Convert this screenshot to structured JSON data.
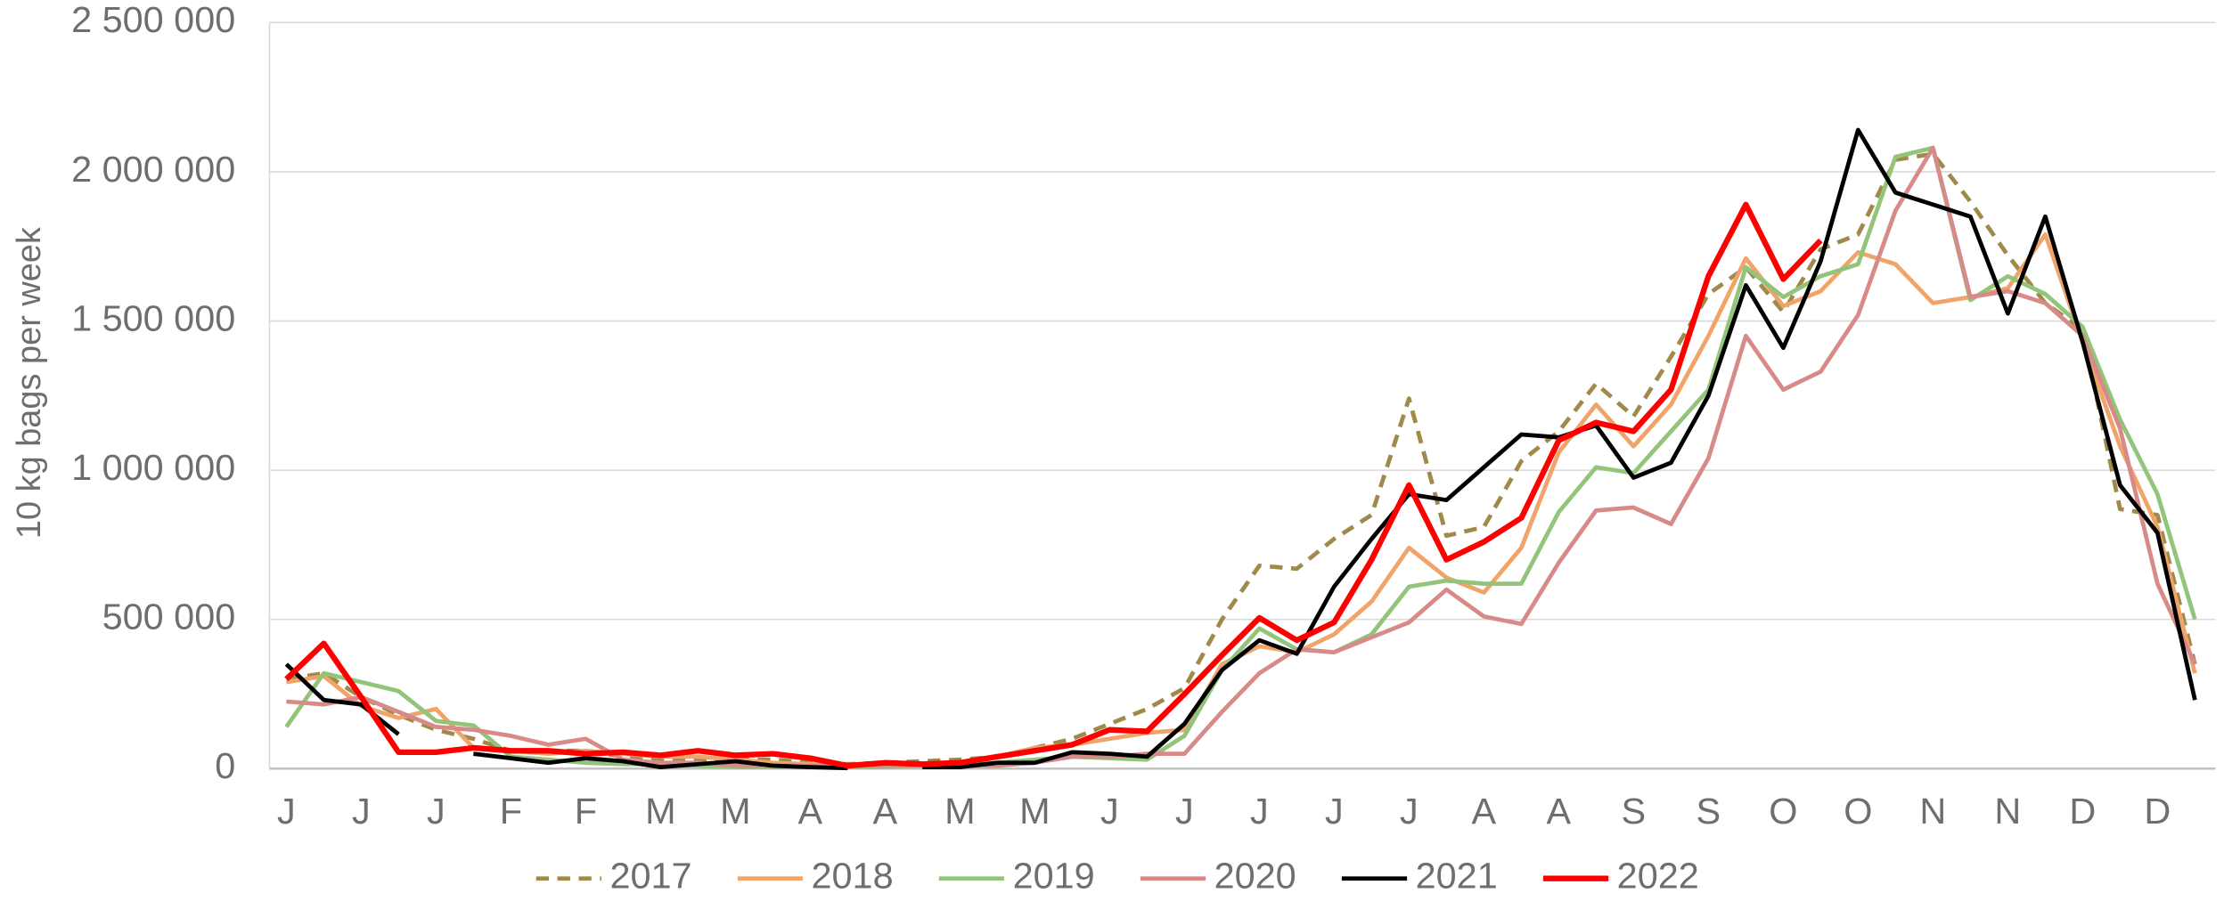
{
  "chart_data": {
    "type": "line",
    "y_label": "10 kg bags per week",
    "categories": [
      "J",
      null,
      "J",
      null,
      "J",
      null,
      "F",
      null,
      "F",
      null,
      "M",
      null,
      "M",
      null,
      "A",
      null,
      "A",
      null,
      "M",
      null,
      "M",
      null,
      "J",
      null,
      "J",
      null,
      "J",
      null,
      "J",
      null,
      "J",
      null,
      "A",
      null,
      "A",
      null,
      "S",
      null,
      "S",
      null,
      "O",
      null,
      "O",
      null,
      "N",
      null,
      "N",
      null,
      "D",
      null,
      "D",
      null
    ],
    "ylim": [
      0,
      2500000
    ],
    "yticks": [
      0,
      {
        "value": 500000,
        "label": "500 000"
      },
      {
        "value": 1000000,
        "label": "1 000 000"
      },
      {
        "value": 1500000,
        "label": "1 500 000"
      },
      {
        "value": 2000000,
        "label": "2 000 000"
      },
      {
        "value": 2500000,
        "label": "2 500 000"
      }
    ],
    "grid": true,
    "legend": "bottom",
    "series": [
      {
        "name": "2017",
        "color": "#a08a4a",
        "dashed": true,
        "values": [
          300000,
          320000,
          240000,
          180000,
          130000,
          100000,
          60000,
          60000,
          60000,
          40000,
          30000,
          30000,
          30000,
          30000,
          20000,
          15000,
          20000,
          25000,
          30000,
          40000,
          70000,
          100000,
          150000,
          200000,
          270000,
          500000,
          680000,
          670000,
          770000,
          850000,
          1240000,
          780000,
          810000,
          1030000,
          1130000,
          1290000,
          1180000,
          1380000,
          1590000,
          1680000,
          1530000,
          1740000,
          1790000,
          2040000,
          2060000,
          1900000,
          1720000,
          1560000,
          1470000,
          870000,
          850000,
          350000
        ]
      },
      {
        "name": "2018",
        "color": "#f0a46a",
        "values": [
          290000,
          310000,
          210000,
          170000,
          200000,
          70000,
          60000,
          50000,
          60000,
          50000,
          40000,
          40000,
          30000,
          20000,
          15000,
          10000,
          10000,
          10000,
          20000,
          40000,
          70000,
          80000,
          100000,
          120000,
          130000,
          350000,
          410000,
          390000,
          450000,
          560000,
          740000,
          640000,
          590000,
          740000,
          1060000,
          1220000,
          1080000,
          1220000,
          1450000,
          1710000,
          1550000,
          1600000,
          1730000,
          1690000,
          1560000,
          1580000,
          1610000,
          1790000,
          1430000,
          1080000,
          810000,
          320000
        ]
      },
      {
        "name": "2019",
        "color": "#92c47a",
        "values": [
          140000,
          320000,
          290000,
          260000,
          160000,
          145000,
          40000,
          30000,
          20000,
          15000,
          15000,
          10000,
          5000,
          5000,
          5000,
          5000,
          5000,
          10000,
          15000,
          20000,
          30000,
          40000,
          35000,
          30000,
          110000,
          330000,
          470000,
          400000,
          390000,
          450000,
          610000,
          630000,
          620000,
          620000,
          860000,
          1010000,
          990000,
          1130000,
          1270000,
          1680000,
          1580000,
          1650000,
          1690000,
          2050000,
          2080000,
          1570000,
          1650000,
          1590000,
          1480000,
          1170000,
          920000,
          500000
        ]
      },
      {
        "name": "2020",
        "color": "#d88a88",
        "values": [
          225000,
          215000,
          240000,
          190000,
          140000,
          130000,
          110000,
          80000,
          100000,
          30000,
          20000,
          20000,
          10000,
          10000,
          10000,
          10000,
          10000,
          10000,
          10000,
          10000,
          20000,
          40000,
          40000,
          50000,
          50000,
          190000,
          320000,
          400000,
          390000,
          440000,
          490000,
          600000,
          510000,
          485000,
          690000,
          865000,
          875000,
          820000,
          1040000,
          1450000,
          1270000,
          1330000,
          1520000,
          1870000,
          2080000,
          1580000,
          1600000,
          1560000,
          1450000,
          1140000,
          620000,
          350000
        ]
      },
      {
        "name": "2021",
        "color": "#000000",
        "values": [
          350000,
          230000,
          215000,
          115000,
          null,
          50000,
          35000,
          20000,
          35000,
          25000,
          5000,
          15000,
          25000,
          10000,
          5000,
          2000,
          null,
          5000,
          5000,
          20000,
          20000,
          55000,
          50000,
          40000,
          150000,
          330000,
          430000,
          385000,
          610000,
          770000,
          920000,
          900000,
          1010000,
          1120000,
          1110000,
          1150000,
          975000,
          1025000,
          1250000,
          1620000,
          1410000,
          1700000,
          2140000,
          1930000,
          1890000,
          1850000,
          1525000,
          1850000,
          1430000,
          950000,
          790000,
          230000
        ]
      },
      {
        "name": "2022",
        "color": "#ff0000",
        "width": 4,
        "values": [
          300000,
          420000,
          240000,
          55000,
          55000,
          70000,
          60000,
          60000,
          50000,
          55000,
          45000,
          60000,
          45000,
          50000,
          35000,
          10000,
          20000,
          15000,
          20000,
          40000,
          60000,
          80000,
          130000,
          125000,
          250000,
          380000,
          505000,
          430000,
          490000,
          700000,
          950000,
          700000,
          760000,
          840000,
          1100000,
          1160000,
          1130000,
          1270000,
          1650000,
          1890000,
          1640000,
          1770000,
          null,
          null,
          null,
          null,
          null,
          null,
          null,
          null,
          null,
          null
        ]
      }
    ]
  }
}
